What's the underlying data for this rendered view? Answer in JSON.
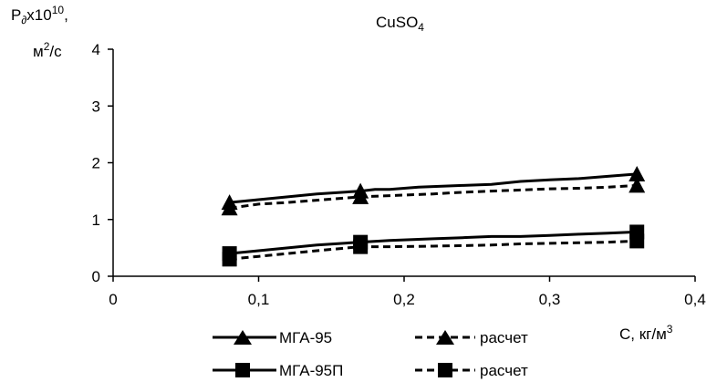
{
  "chart_data": {
    "type": "line",
    "title": "CuSO",
    "title_sub": "4",
    "ylabel": {
      "line1_main": "P",
      "line1_sub": "∂",
      "line1_mid": "x10",
      "line1_sup": "10",
      "line1_end": ",",
      "line2_main": "м",
      "line2_sup": "2",
      "line2_end": "/с"
    },
    "xlabel": {
      "main": "C, кг/м",
      "sup": "3"
    },
    "xlim": [
      0,
      0.4
    ],
    "ylim": [
      0,
      4
    ],
    "x_ticks": [
      {
        "value": 0,
        "label": "0"
      },
      {
        "value": 0.1,
        "label": "0,1"
      },
      {
        "value": 0.2,
        "label": "0,2"
      },
      {
        "value": 0.3,
        "label": "0,3"
      },
      {
        "value": 0.4,
        "label": "0,4"
      }
    ],
    "y_ticks": [
      {
        "value": 0,
        "label": "0"
      },
      {
        "value": 1,
        "label": "1"
      },
      {
        "value": 2,
        "label": "2"
      },
      {
        "value": 3,
        "label": "3"
      },
      {
        "value": 4,
        "label": "4"
      }
    ],
    "grid": false,
    "legend_placement": "bottom",
    "series": [
      {
        "name": "МГА-95",
        "marker": "triangle",
        "line": "solid",
        "x": [
          0.08,
          0.1,
          0.12,
          0.14,
          0.17,
          0.18,
          0.19,
          0.21,
          0.24,
          0.26,
          0.28,
          0.3,
          0.32,
          0.34,
          0.36
        ],
        "y": [
          1.3,
          1.35,
          1.4,
          1.45,
          1.5,
          1.53,
          1.53,
          1.57,
          1.6,
          1.62,
          1.67,
          1.7,
          1.72,
          1.76,
          1.8
        ],
        "marker_x": [
          0.08,
          0.17,
          0.36
        ],
        "marker_y": [
          1.3,
          1.5,
          1.8
        ]
      },
      {
        "name": "расчет",
        "marker": "triangle",
        "line": "dashed",
        "x": [
          0.08,
          0.1,
          0.12,
          0.14,
          0.17,
          0.19,
          0.22,
          0.24,
          0.26,
          0.28,
          0.3,
          0.32,
          0.34,
          0.36
        ],
        "y": [
          1.2,
          1.27,
          1.3,
          1.34,
          1.4,
          1.42,
          1.45,
          1.48,
          1.5,
          1.52,
          1.54,
          1.55,
          1.57,
          1.6
        ],
        "marker_x": [
          0.08,
          0.17,
          0.36
        ],
        "marker_y": [
          1.2,
          1.4,
          1.6
        ]
      },
      {
        "name": "МГА-95П",
        "marker": "square",
        "line": "solid",
        "x": [
          0.08,
          0.1,
          0.12,
          0.14,
          0.17,
          0.19,
          0.22,
          0.24,
          0.26,
          0.28,
          0.3,
          0.32,
          0.34,
          0.36
        ],
        "y": [
          0.4,
          0.45,
          0.5,
          0.55,
          0.6,
          0.63,
          0.66,
          0.68,
          0.7,
          0.7,
          0.72,
          0.74,
          0.76,
          0.78
        ],
        "marker_x": [
          0.08,
          0.17,
          0.36
        ],
        "marker_y": [
          0.4,
          0.6,
          0.78
        ]
      },
      {
        "name": "расчет",
        "marker": "square",
        "line": "dashed",
        "x": [
          0.08,
          0.1,
          0.12,
          0.14,
          0.17,
          0.19,
          0.22,
          0.24,
          0.26,
          0.28,
          0.3,
          0.32,
          0.34,
          0.36
        ],
        "y": [
          0.3,
          0.35,
          0.4,
          0.45,
          0.52,
          0.52,
          0.53,
          0.54,
          0.55,
          0.57,
          0.58,
          0.59,
          0.6,
          0.62
        ],
        "marker_x": [
          0.08,
          0.17,
          0.36
        ],
        "marker_y": [
          0.3,
          0.52,
          0.62
        ]
      }
    ]
  },
  "colors": {
    "ink": "#000000",
    "background": "#ffffff"
  }
}
